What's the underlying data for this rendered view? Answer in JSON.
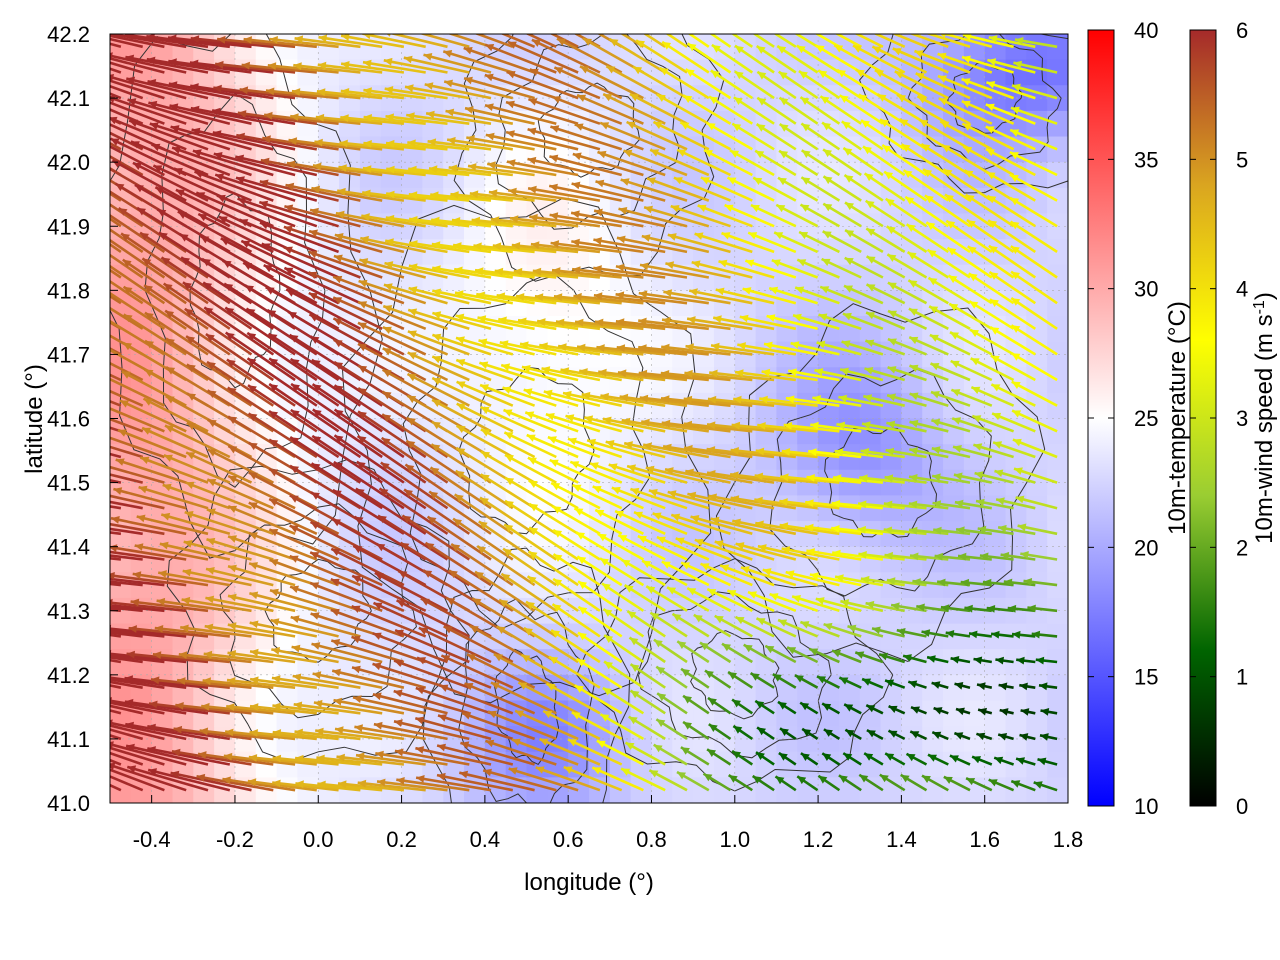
{
  "chart_data": {
    "type": "heatmap",
    "title": "",
    "xlabel": "longitude (°)",
    "ylabel": "latitude (°)",
    "xlim": [
      -0.5,
      1.8
    ],
    "ylim": [
      41.0,
      42.2
    ],
    "x_ticks": [
      "-0.4",
      "-0.2",
      "0.0",
      "0.2",
      "0.4",
      "0.6",
      "0.8",
      "1.0",
      "1.2",
      "1.4",
      "1.6",
      "1.8"
    ],
    "y_ticks": [
      "41.0",
      "41.1",
      "41.2",
      "41.3",
      "41.4",
      "41.5",
      "41.6",
      "41.7",
      "41.8",
      "41.9",
      "42.0",
      "42.1",
      "42.2"
    ],
    "grid": true,
    "layers": [
      {
        "kind": "filled-field",
        "variable": "10m-temperature",
        "units": "°C"
      },
      {
        "kind": "contour-lines",
        "variable": "terrain",
        "color": "#333333"
      },
      {
        "kind": "vector-field",
        "variable": "10m-wind",
        "units": "m s-1"
      }
    ],
    "colorbars": [
      {
        "label": "10m-temperature (°C)",
        "range": [
          10,
          40
        ],
        "ticks": [
          "10",
          "15",
          "20",
          "25",
          "30",
          "35",
          "40"
        ],
        "stops": [
          "#0000ff",
          "#ffffff",
          "#ff0000"
        ]
      },
      {
        "label_base": "10m-wind speed (m s",
        "label_sup": "-1",
        "label_end": ")",
        "range": [
          0,
          6
        ],
        "ticks": [
          "0",
          "1",
          "2",
          "3",
          "4",
          "5",
          "6"
        ],
        "stops": [
          "#000000",
          "#006400",
          "#9acd32",
          "#ffff00",
          "#daa520",
          "#a52a2a"
        ]
      }
    ],
    "regions": [
      {
        "lon": [
          -0.5,
          0.1
        ],
        "lat": [
          41.0,
          42.2
        ],
        "temperature": 30,
        "wind_speed": 6,
        "wind_direction": "from east"
      },
      {
        "lon": [
          0.3,
          0.8
        ],
        "lat": [
          41.5,
          42.1
        ],
        "temperature": 26,
        "wind_speed": 3.5,
        "wind_direction": "from east-southeast"
      },
      {
        "lon": [
          1.4,
          1.8
        ],
        "lat": [
          41.9,
          42.2
        ],
        "temperature": 16,
        "wind_speed": 2,
        "wind_direction": "from east"
      },
      {
        "lon": [
          0.9,
          1.8
        ],
        "lat": [
          41.0,
          41.3
        ],
        "temperature": 21,
        "wind_speed": 0.5,
        "wind_direction": "variable"
      },
      {
        "lon": [
          1.0,
          1.6
        ],
        "lat": [
          41.4,
          41.7
        ],
        "temperature": 19,
        "wind_speed": 3,
        "wind_direction": "from east"
      }
    ]
  }
}
